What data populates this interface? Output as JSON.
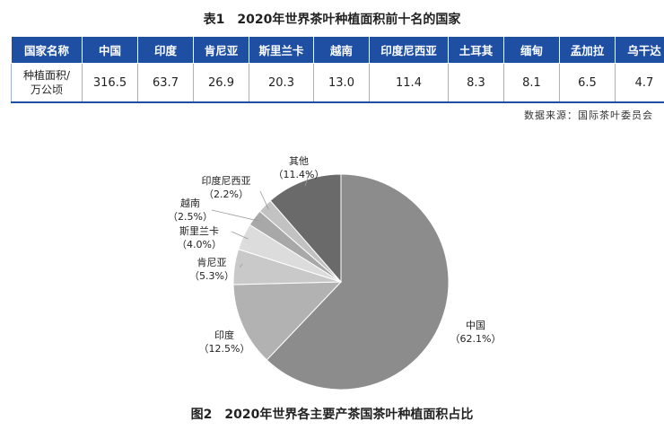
{
  "table": {
    "caption": "表1　2020年世界茶叶种植面积前十名的国家",
    "header_label": "国家名称",
    "row_label": "种植面积/万公顷",
    "row_label_line1": "种植面积/",
    "row_label_line2": "万公顷",
    "countries": [
      "中国",
      "印度",
      "肯尼亚",
      "斯里兰卡",
      "越南",
      "印度尼西亚",
      "土耳其",
      "缅甸",
      "孟加拉",
      "乌干达"
    ],
    "values": [
      "316.5",
      "63.7",
      "26.9",
      "20.3",
      "13.0",
      "11.4",
      "8.3",
      "8.1",
      "6.5",
      "4.7"
    ],
    "header_color": "#1f4fa3"
  },
  "source_note": "数据来源：国际茶叶委员会",
  "figure_caption": "图2　2020年世界各主要产茶国茶叶种植面积占比",
  "chart_data": {
    "type": "pie",
    "title": "图2　2020年世界各主要产茶国茶叶种植面积占比",
    "slices": [
      {
        "label": "中国",
        "value": 62.1,
        "value_text": "（62.1%）",
        "color": "#8c8c8c"
      },
      {
        "label": "印度",
        "value": 12.5,
        "value_text": "（12.5%）",
        "color": "#b2b2b2"
      },
      {
        "label": "肯尼亚",
        "value": 5.3,
        "value_text": "（5.3%）",
        "color": "#c9c9c9"
      },
      {
        "label": "斯里兰卡",
        "value": 4.0,
        "value_text": "（4.0%）",
        "color": "#dcdcdc"
      },
      {
        "label": "越南",
        "value": 2.5,
        "value_text": "（2.5%）",
        "color": "#a8a8a8"
      },
      {
        "label": "印度尼西亚",
        "value": 2.2,
        "value_text": "（2.2%）",
        "color": "#c2c2c2"
      },
      {
        "label": "其他",
        "value": 11.4,
        "value_text": "（11.4%）",
        "color": "#6a6a6a"
      }
    ]
  }
}
